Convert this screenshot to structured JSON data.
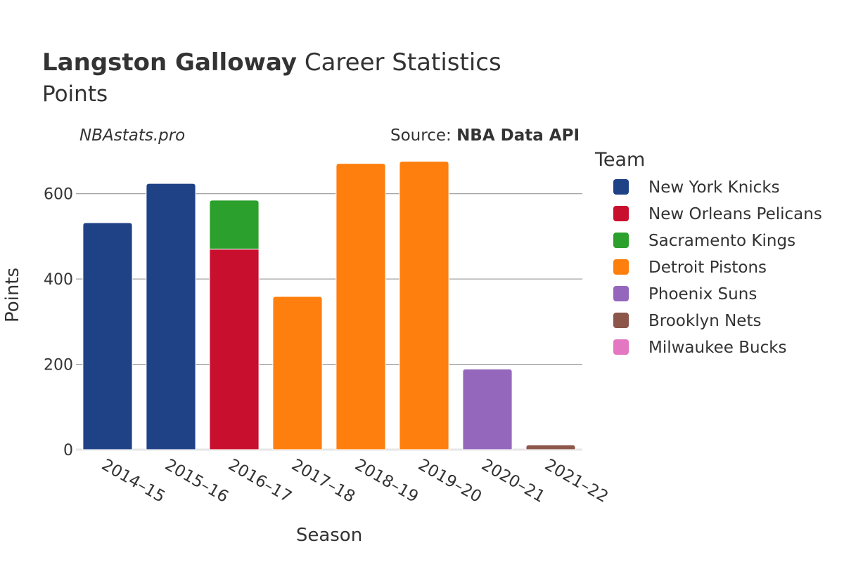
{
  "header": {
    "title_bold": "Langston Galloway",
    "title_rest": " Career Statistics",
    "subtitle": "Points",
    "watermark": "NBAstats.pro",
    "source_prefix": "Source: ",
    "source_bold": "NBA Data API"
  },
  "chart_data": {
    "type": "bar",
    "stacked": true,
    "xlabel": "Season",
    "ylabel": "Points",
    "ylim": [
      0,
      700
    ],
    "yticks": [
      0,
      200,
      400,
      600
    ],
    "grid": true,
    "legend_title": "Team",
    "legend_position": "right",
    "categories": [
      "2014–15",
      "2015–16",
      "2016–17",
      "2017–18",
      "2018–19",
      "2019–20",
      "2020–21",
      "2021–22"
    ],
    "series": [
      {
        "name": "New York Knicks",
        "color": "#1f4287",
        "values": [
          532,
          624,
          0,
          0,
          0,
          0,
          0,
          0
        ]
      },
      {
        "name": "New Orleans Pelicans",
        "color": "#c8102e",
        "values": [
          0,
          0,
          470,
          0,
          0,
          0,
          0,
          0
        ]
      },
      {
        "name": "Sacramento Kings",
        "color": "#2ca02c",
        "values": [
          0,
          0,
          115,
          0,
          0,
          0,
          0,
          0
        ]
      },
      {
        "name": "Detroit Pistons",
        "color": "#ff7f0e",
        "values": [
          0,
          0,
          0,
          359,
          671,
          676,
          0,
          0
        ]
      },
      {
        "name": "Phoenix Suns",
        "color": "#9467bd",
        "values": [
          0,
          0,
          0,
          0,
          0,
          0,
          189,
          0
        ]
      },
      {
        "name": "Brooklyn Nets",
        "color": "#8c564b",
        "values": [
          0,
          0,
          0,
          0,
          0,
          0,
          0,
          11
        ]
      },
      {
        "name": "Milwaukee Bucks",
        "color": "#e377c2",
        "values": [
          0,
          0,
          0,
          0,
          0,
          0,
          0,
          0
        ]
      }
    ]
  }
}
